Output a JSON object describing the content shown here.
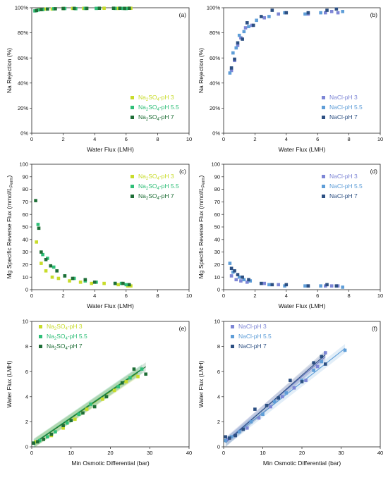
{
  "colors": {
    "na_ph3": "#c8dc2a",
    "na_ph55": "#2fbf78",
    "na_ph7": "#1e6e36",
    "nacl_ph3": "#7d86d6",
    "nacl_ph55": "#5f9ed8",
    "nacl_ph7": "#2c4f82"
  },
  "chart_data": [
    {
      "id": "a",
      "panel_label": "(a)",
      "type": "scatter",
      "xlabel": "Water Flux (LMH)",
      "ylabel": "Na Rejection (%)",
      "xlim": [
        0,
        10
      ],
      "ylim": [
        0,
        100
      ],
      "xticks": [
        0,
        2,
        4,
        6,
        8,
        10
      ],
      "yticks": [
        0,
        20,
        40,
        60,
        80,
        100
      ],
      "ytick_labels": [
        "0%",
        "20%",
        "40%",
        "60%",
        "80%",
        "100%"
      ],
      "legend_position": "bottom-right",
      "series": [
        {
          "name": "Na2SO4-pH 3",
          "legend_parts": [
            [
              "Na",
              ""
            ],
            [
              "2",
              "sub"
            ],
            [
              "SO",
              ""
            ],
            [
              "4",
              "sub"
            ],
            [
              "-pH 3",
              ""
            ]
          ],
          "color": "na_ph3",
          "x": [
            0.5,
            0.9,
            1.3,
            2.0,
            2.6,
            3.3,
            4.6,
            5.5,
            6.1,
            6.3
          ],
          "y": [
            98.5,
            99,
            99,
            99.4,
            99.5,
            99.5,
            99.6,
            99.5,
            99.6,
            99.6
          ]
        },
        {
          "name": "Na2SO4-pH 5.5",
          "legend_parts": [
            [
              "Na",
              ""
            ],
            [
              "2",
              "sub"
            ],
            [
              "SO",
              ""
            ],
            [
              "4",
              "sub"
            ],
            [
              "-pH 5.5",
              ""
            ]
          ],
          "color": "na_ph55",
          "x": [
            0.2,
            0.4,
            0.7,
            1.0,
            1.4,
            2.1,
            2.8,
            3.4,
            4.1,
            5.3,
            5.8,
            6.0
          ],
          "y": [
            97.5,
            98.2,
            98.5,
            99,
            99.2,
            99.4,
            99.3,
            99.5,
            99.5,
            99.5,
            99.5,
            99.4
          ]
        },
        {
          "name": "Na2SO4-pH 7",
          "legend_parts": [
            [
              "Na",
              ""
            ],
            [
              "2",
              "sub"
            ],
            [
              "SO",
              ""
            ],
            [
              "4",
              "sub"
            ],
            [
              "-pH 7",
              ""
            ]
          ],
          "color": "na_ph7",
          "x": [
            0.3,
            0.6,
            1.0,
            1.5,
            2.0,
            2.7,
            3.5,
            4.3,
            5.2,
            5.6,
            5.9,
            6.2
          ],
          "y": [
            97.8,
            98.5,
            99,
            99.2,
            99.4,
            99.5,
            99.5,
            99.6,
            99.6,
            99.6,
            99.5,
            99.6
          ]
        }
      ]
    },
    {
      "id": "b",
      "panel_label": "(b)",
      "type": "scatter",
      "xlabel": "Water Flux (LMH)",
      "ylabel": "Na Rejection (%)",
      "xlim": [
        0,
        10
      ],
      "ylim": [
        0,
        100
      ],
      "xticks": [
        0,
        2,
        4,
        6,
        8,
        10
      ],
      "yticks": [
        0,
        20,
        40,
        60,
        80,
        100
      ],
      "ytick_labels": [
        "0%",
        "20%",
        "40%",
        "60%",
        "80%",
        "100%"
      ],
      "legend_position": "bottom-right",
      "series": [
        {
          "name": "NaCl-pH 3",
          "legend_parts": [
            [
              "NaCl-pH 3",
              ""
            ]
          ],
          "color": "nacl_ph3",
          "x": [
            0.5,
            0.7,
            0.9,
            1.1,
            1.4,
            1.8,
            2.6,
            3.5,
            5.4,
            6.5,
            6.9,
            7.3
          ],
          "y": [
            50,
            58,
            70,
            76,
            84,
            86,
            92,
            95,
            95,
            96,
            97,
            96
          ]
        },
        {
          "name": "NaCl-pH 5.5",
          "legend_parts": [
            [
              "NaCl-pH 5.5",
              ""
            ]
          ],
          "color": "nacl_ph55",
          "x": [
            0.4,
            0.6,
            0.8,
            1.0,
            1.3,
            1.6,
            2.1,
            2.9,
            3.9,
            5.2,
            6.2,
            7.6
          ],
          "y": [
            48,
            64,
            68,
            78,
            81,
            85,
            90,
            93,
            96,
            95,
            96,
            97
          ]
        },
        {
          "name": "NaCl-pH 7",
          "legend_parts": [
            [
              "NaCl-pH 7",
              ""
            ]
          ],
          "color": "nacl_ph7",
          "x": [
            0.5,
            0.7,
            0.9,
            1.2,
            1.5,
            1.9,
            2.4,
            3.1,
            4.0,
            5.4,
            6.6,
            7.2
          ],
          "y": [
            52,
            59,
            72,
            75,
            88,
            86,
            93,
            98,
            96,
            96,
            98,
            99
          ]
        }
      ]
    },
    {
      "id": "c",
      "panel_label": "(c)",
      "type": "scatter",
      "xlabel": "Water Flux (LMH)",
      "ylabel": "Mg Specific Reverse Flux (mmol/L_Perm)",
      "xlim": [
        0,
        10
      ],
      "ylim": [
        0,
        100
      ],
      "xticks": [
        0,
        2,
        4,
        6,
        8,
        10
      ],
      "yticks": [
        0,
        10,
        20,
        30,
        40,
        50,
        60,
        70,
        80,
        90,
        100
      ],
      "legend_position": "top-right",
      "series": [
        {
          "name": "Na2SO4-pH 3",
          "legend_parts": [
            [
              "Na",
              ""
            ],
            [
              "2",
              "sub"
            ],
            [
              "SO",
              ""
            ],
            [
              "4",
              "sub"
            ],
            [
              "-pH 3",
              ""
            ]
          ],
          "color": "na_ph3",
          "x": [
            0.3,
            0.6,
            0.9,
            1.3,
            1.7,
            2.4,
            3.1,
            3.8,
            4.6,
            5.5,
            6.1,
            6.3
          ],
          "y": [
            38,
            21,
            15,
            10,
            9,
            7,
            6,
            5,
            5,
            4,
            3,
            3
          ]
        },
        {
          "name": "Na2SO4-pH 5.5",
          "legend_parts": [
            [
              "Na",
              ""
            ],
            [
              "2",
              "sub"
            ],
            [
              "SO",
              ""
            ],
            [
              "4",
              "sub"
            ],
            [
              "-pH 5.5",
              ""
            ]
          ],
          "color": "na_ph55",
          "x": [
            0.4,
            0.7,
            1.0,
            1.4,
            2.1,
            2.7,
            3.4,
            4.1,
            5.3,
            5.7,
            6.0
          ],
          "y": [
            52,
            28,
            25,
            18,
            11,
            9,
            7,
            6,
            5,
            5,
            4
          ]
        },
        {
          "name": "Na2SO4-pH 7",
          "legend_parts": [
            [
              "Na",
              ""
            ],
            [
              "2",
              "sub"
            ],
            [
              "SO",
              ""
            ],
            [
              "4",
              "sub"
            ],
            [
              "-pH 7",
              ""
            ]
          ],
          "color": "na_ph7",
          "x": [
            0.25,
            0.45,
            0.6,
            0.9,
            1.2,
            1.6,
            2.1,
            2.6,
            3.4,
            4.0,
            5.3,
            5.8,
            6.2
          ],
          "y": [
            71,
            49,
            30,
            24,
            19,
            15,
            11,
            9,
            8,
            6,
            5,
            5,
            4
          ]
        }
      ]
    },
    {
      "id": "d",
      "panel_label": "(d)",
      "type": "scatter",
      "xlabel": "Water Flux (LMH)",
      "ylabel": "Mg Specific Reverse Flux (mmol/L_Perm)",
      "xlim": [
        0,
        10
      ],
      "ylim": [
        0,
        100
      ],
      "xticks": [
        0,
        2,
        4,
        6,
        8,
        10
      ],
      "yticks": [
        0,
        10,
        20,
        30,
        40,
        50,
        60,
        70,
        80,
        90,
        100
      ],
      "legend_position": "top-right",
      "series": [
        {
          "name": "NaCl-pH 3",
          "legend_parts": [
            [
              "NaCl-pH 3",
              ""
            ]
          ],
          "color": "nacl_ph3",
          "x": [
            0.5,
            0.8,
            1.1,
            1.5,
            2.6,
            3.5,
            5.4,
            6.5,
            6.9,
            7.3
          ],
          "y": [
            11,
            8,
            7,
            6,
            5,
            4,
            3,
            3,
            3,
            3
          ]
        },
        {
          "name": "NaCl-pH 5.5",
          "legend_parts": [
            [
              "NaCl-pH 5.5",
              ""
            ]
          ],
          "color": "nacl_ph55",
          "x": [
            0.4,
            0.6,
            1.0,
            1.3,
            1.7,
            2.9,
            3.9,
            5.2,
            6.2,
            7.6
          ],
          "y": [
            21,
            14,
            10,
            8,
            7,
            4,
            3,
            3,
            3,
            2
          ]
        },
        {
          "name": "NaCl-pH 7",
          "legend_parts": [
            [
              "NaCl-pH 7",
              ""
            ]
          ],
          "color": "nacl_ph7",
          "x": [
            0.5,
            0.7,
            0.9,
            1.2,
            1.6,
            2.4,
            3.1,
            4.0,
            5.4,
            6.6,
            7.2
          ],
          "y": [
            17,
            15,
            12,
            10,
            8,
            5,
            4,
            4,
            3,
            4,
            3
          ]
        }
      ]
    },
    {
      "id": "e",
      "panel_label": "(e)",
      "type": "scatter",
      "xlabel": "Min Osmotic Differential (bar)",
      "ylabel": "Water Flux (LMH)",
      "xlim": [
        0,
        40
      ],
      "ylim": [
        0,
        10
      ],
      "xticks": [
        0,
        10,
        20,
        30,
        40
      ],
      "yticks": [
        0,
        2,
        4,
        6,
        8,
        10
      ],
      "legend_position": "top-left",
      "series": [
        {
          "name": "Na2SO4-pH 3",
          "legend_parts": [
            [
              "Na",
              ""
            ],
            [
              "2",
              "sub"
            ],
            [
              "SO",
              ""
            ],
            [
              "4",
              "sub"
            ],
            [
              "-pH 3",
              ""
            ]
          ],
          "color": "na_ph3",
          "x": [
            1,
            3,
            5,
            8,
            11,
            14,
            18,
            21,
            24,
            27
          ],
          "y": [
            0.4,
            0.6,
            0.9,
            1.5,
            2.2,
            3.0,
            3.8,
            4.5,
            5.2,
            5.6
          ],
          "fit": {
            "slope": 0.212,
            "intercept": 0.15
          }
        },
        {
          "name": "Na2SO4-pH 5.5",
          "legend_parts": [
            [
              "Na",
              ""
            ],
            [
              "2",
              "sub"
            ],
            [
              "SO",
              ""
            ],
            [
              "4",
              "sub"
            ],
            [
              "-pH 5.5",
              ""
            ]
          ],
          "color": "na_ph55",
          "x": [
            0.5,
            2,
            4,
            6,
            9,
            12,
            15,
            19,
            22,
            25,
            28
          ],
          "y": [
            0.3,
            0.5,
            0.8,
            1.2,
            1.9,
            2.6,
            3.4,
            4.0,
            4.8,
            5.5,
            6.2
          ],
          "fit": {
            "slope": 0.215,
            "intercept": 0.2
          }
        },
        {
          "name": "Na2SO4-pH 7",
          "legend_parts": [
            [
              "Na",
              ""
            ],
            [
              "2",
              "sub"
            ],
            [
              "SO",
              ""
            ],
            [
              "4",
              "sub"
            ],
            [
              "-pH 7",
              ""
            ]
          ],
          "color": "na_ph7",
          "x": [
            0.5,
            1.5,
            3,
            5,
            8,
            10,
            13,
            16,
            19,
            23,
            26,
            29
          ],
          "y": [
            0.3,
            0.4,
            0.6,
            1.0,
            1.7,
            2.1,
            2.7,
            3.2,
            4.0,
            5.1,
            6.2,
            5.8
          ],
          "fit": {
            "slope": 0.215,
            "intercept": 0.15
          }
        }
      ]
    },
    {
      "id": "f",
      "panel_label": "(f)",
      "type": "scatter",
      "xlabel": "Min Osmotic Differential (bar)",
      "ylabel": "Water Flux (LMH)",
      "xlim": [
        0,
        40
      ],
      "ylim": [
        0,
        10
      ],
      "xticks": [
        0,
        10,
        20,
        30,
        40
      ],
      "yticks": [
        0,
        2,
        4,
        6,
        8,
        10
      ],
      "legend_position": "top-left",
      "series": [
        {
          "name": "NaCl-pH 3",
          "legend_parts": [
            [
              "NaCl-pH 3",
              ""
            ]
          ],
          "color": "nacl_ph3",
          "x": [
            1,
            3,
            6,
            9,
            12,
            15,
            18,
            21,
            24,
            26
          ],
          "y": [
            0.6,
            0.9,
            1.5,
            2.3,
            3.2,
            4.0,
            4.7,
            5.3,
            6.4,
            7.5
          ],
          "fit": {
            "slope": 0.265,
            "intercept": 0.3
          }
        },
        {
          "name": "NaCl-pH 5.5",
          "legend_parts": [
            [
              "NaCl-pH 5.5",
              ""
            ]
          ],
          "color": "nacl_ph55",
          "x": [
            0.5,
            2,
            4,
            7,
            10,
            13,
            16,
            20,
            23,
            25,
            31
          ],
          "y": [
            0.5,
            0.8,
            1.2,
            2.0,
            2.6,
            3.6,
            4.3,
            5.3,
            6.1,
            6.8,
            7.7
          ],
          "fit": {
            "slope": 0.245,
            "intercept": 0.25
          }
        },
        {
          "name": "NaCl-pH 7",
          "legend_parts": [
            [
              "NaCl-pH 7",
              ""
            ]
          ],
          "color": "nacl_ph7",
          "x": [
            0.5,
            1.5,
            3,
            5,
            8,
            11,
            14,
            17,
            20,
            23,
            25,
            26
          ],
          "y": [
            0.8,
            0.7,
            0.9,
            1.4,
            3.0,
            3.3,
            3.9,
            5.3,
            5.2,
            6.7,
            7.2,
            6.6
          ],
          "fit": {
            "slope": 0.275,
            "intercept": 0.2
          }
        }
      ]
    }
  ]
}
